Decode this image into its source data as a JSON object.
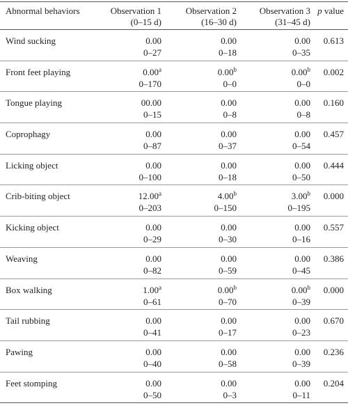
{
  "table": {
    "header": {
      "name": "Abnormal behaviors",
      "observations": [
        {
          "title": "Observation 1",
          "period": "(0–15 d)"
        },
        {
          "title": "Observation 2",
          "period": "(16–30 d)"
        },
        {
          "title": "Observation 3",
          "period": "(31–45 d)"
        }
      ],
      "p_italic": "p",
      "p_text": "value"
    },
    "rows": [
      {
        "name": "Wind sucking",
        "obs": [
          {
            "median": "0.00",
            "range": "0–27"
          },
          {
            "median": "0.00",
            "range": "0–18"
          },
          {
            "median": "0.00",
            "range": "0–35"
          }
        ],
        "p": "0.613"
      },
      {
        "name": "Front feet playing",
        "obs": [
          {
            "median": "0.00",
            "sup": "a",
            "range": "0–170"
          },
          {
            "median": "0.00",
            "sup": "b",
            "range": "0–0"
          },
          {
            "median": "0.00",
            "sup": "b",
            "range": "0–0"
          }
        ],
        "p": "0.002"
      },
      {
        "name": "Tongue playing",
        "obs": [
          {
            "median": "00.00",
            "range": "0–15"
          },
          {
            "median": "0.00",
            "range": "0–8"
          },
          {
            "median": "0.00",
            "range": "0–8"
          }
        ],
        "p": "0.160"
      },
      {
        "name": "Coprophagy",
        "obs": [
          {
            "median": "0.00",
            "range": "0–87"
          },
          {
            "median": "0.00",
            "range": "0–37"
          },
          {
            "median": "0.00",
            "range": "0–54"
          }
        ],
        "p": "0.457"
      },
      {
        "name": "Licking object",
        "obs": [
          {
            "median": "0.00",
            "range": "0–100"
          },
          {
            "median": "0.00",
            "range": "0–18"
          },
          {
            "median": "0.00",
            "range": "0–50"
          }
        ],
        "p": "0.444"
      },
      {
        "name": "Crib-biting object",
        "obs": [
          {
            "median": "12.00",
            "sup": "a",
            "range": "0–203"
          },
          {
            "median": "4.00",
            "sup": "b",
            "range": "0–150"
          },
          {
            "median": "3.00",
            "sup": "b",
            "range": "0–195"
          }
        ],
        "p": "0.000"
      },
      {
        "name": "Kicking object",
        "obs": [
          {
            "median": "0.00",
            "range": "0–29"
          },
          {
            "median": "0.00",
            "range": "0–30"
          },
          {
            "median": "0.00",
            "range": "0–16"
          }
        ],
        "p": "0.557"
      },
      {
        "name": "Weaving",
        "obs": [
          {
            "median": "0.00",
            "range": "0–82"
          },
          {
            "median": "0.00",
            "range": "0–59"
          },
          {
            "median": "0.00",
            "range": "0–45"
          }
        ],
        "p": "0.386"
      },
      {
        "name": "Box walking",
        "obs": [
          {
            "median": "1.00",
            "sup": "a",
            "range": "0–61"
          },
          {
            "median": "0.00",
            "sup": "b",
            "range": "0–70"
          },
          {
            "median": "0.00",
            "sup": "b",
            "range": "0–39"
          }
        ],
        "p": "0.000"
      },
      {
        "name": "Tail rubbing",
        "obs": [
          {
            "median": "0.00",
            "range": "0–41"
          },
          {
            "median": "0.00",
            "range": "0–17"
          },
          {
            "median": "0.00",
            "range": "0–23"
          }
        ],
        "p": "0.670"
      },
      {
        "name": "Pawing",
        "obs": [
          {
            "median": "0.00",
            "range": "0–40"
          },
          {
            "median": "0.00",
            "range": "0–58"
          },
          {
            "median": "0.00",
            "range": "0–39"
          }
        ],
        "p": "0.236"
      },
      {
        "name": "Feet stomping",
        "obs": [
          {
            "median": "0.00",
            "range": "0–50"
          },
          {
            "median": "0.00",
            "range": "0–3"
          },
          {
            "median": "0.00",
            "range": "0–11"
          }
        ],
        "p": "0.204"
      }
    ]
  }
}
